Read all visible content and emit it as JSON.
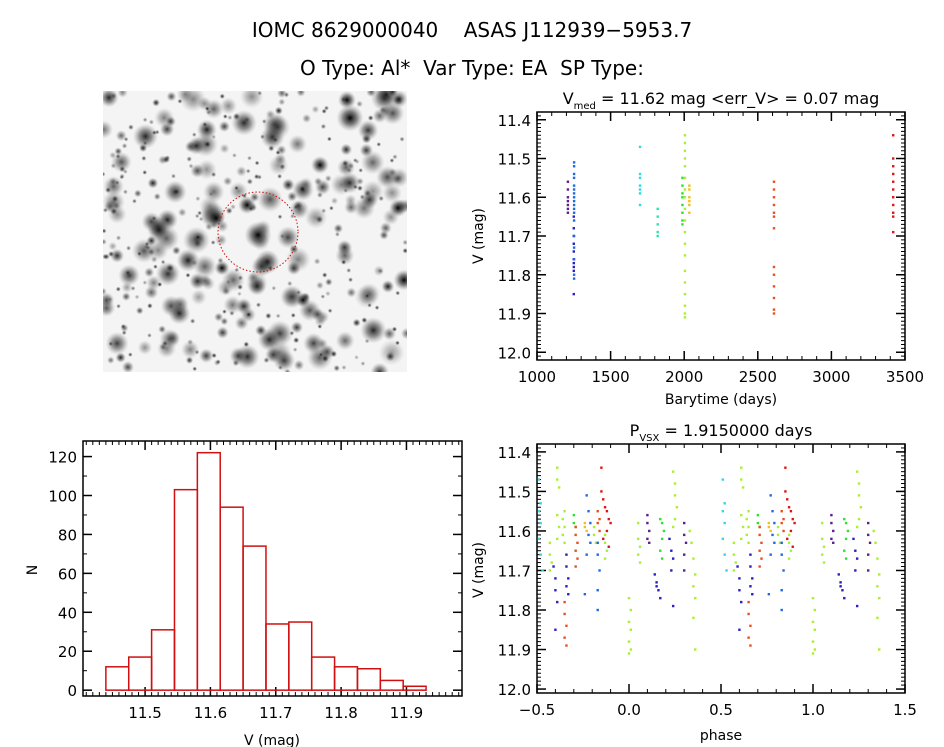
{
  "header": {
    "title": "IOMC 8629000040    ASAS J112939−5953.7",
    "subtitle": "O Type: Al*  Var Type: EA  SP Type:"
  },
  "colors": {
    "purple": "#5a2090",
    "darkblue": "#2a20c0",
    "blue": "#1f6ae0",
    "cyan": "#30d8e8",
    "teal": "#30e0b0",
    "green": "#30e030",
    "ygreen": "#a8f030",
    "yellow": "#f0c020",
    "orange": "#e85020",
    "red": "#d81818",
    "hist": "#d01010",
    "circle": "#cc1010"
  },
  "image_panel": {
    "type": "sky image",
    "marker": "dashed red circle around target"
  },
  "chart_data": [
    {
      "id": "lightcurve",
      "type": "scatter",
      "title_main": "V",
      "title_sub": "med",
      "title_rest": " = 11.62 mag <err_V> = 0.07 mag",
      "xlabel": "Barytime (days)",
      "ylabel": "V (mag)",
      "xlim": [
        1000,
        3500
      ],
      "ylim": [
        12.02,
        11.38
      ],
      "y_inverted": true,
      "xticks": [
        1000,
        1500,
        2000,
        2500,
        3000,
        3500
      ],
      "xtick_labels": [
        "1000",
        "1500",
        "2000",
        "2500",
        "3000",
        "3500"
      ],
      "yticks": [
        11.4,
        11.5,
        11.6,
        11.7,
        11.8,
        11.9,
        12.0
      ],
      "ytick_labels": [
        "11.4",
        "11.5",
        "11.6",
        "11.7",
        "11.8",
        "11.9",
        "12.0"
      ],
      "grid": false,
      "series": [
        {
          "color": "purple",
          "x": 1210,
          "y": [
            11.56,
            11.58,
            11.6,
            11.61,
            11.62,
            11.63,
            11.64
          ]
        },
        {
          "color": "darkblue",
          "x": 1250,
          "y": [
            11.65,
            11.68,
            11.7,
            11.72,
            11.74,
            11.76,
            11.77,
            11.78,
            11.79,
            11.85
          ]
        },
        {
          "color": "blue",
          "x": 1252,
          "y": [
            11.51,
            11.52,
            11.54,
            11.55,
            11.57,
            11.58,
            11.59,
            11.6,
            11.61,
            11.62,
            11.63,
            11.64,
            11.66,
            11.7,
            11.73,
            11.76,
            11.8,
            11.81
          ]
        },
        {
          "color": "cyan",
          "x": 1700,
          "y": [
            11.47,
            11.54,
            11.55,
            11.57,
            11.58,
            11.59,
            11.62
          ]
        },
        {
          "color": "teal",
          "x": 1820,
          "y": [
            11.63,
            11.65,
            11.67,
            11.69,
            11.7
          ]
        },
        {
          "color": "green",
          "x": 1988,
          "y": [
            11.55,
            11.57,
            11.59,
            11.6,
            11.62,
            11.64,
            11.66,
            11.67
          ]
        },
        {
          "color": "ygreen",
          "x": 2005,
          "y": [
            11.44,
            11.46,
            11.48,
            11.5,
            11.52,
            11.55,
            11.58,
            11.6,
            11.63,
            11.66,
            11.69,
            11.72,
            11.75,
            11.79,
            11.82,
            11.85,
            11.88,
            11.9,
            11.91
          ]
        },
        {
          "color": "yellow",
          "x": 2035,
          "y": [
            11.57,
            11.58,
            11.6,
            11.61,
            11.62,
            11.64
          ]
        },
        {
          "color": "orange",
          "x": 2610,
          "y": [
            11.56,
            11.58,
            11.6,
            11.62,
            11.64,
            11.65,
            11.68,
            11.78,
            11.8,
            11.83,
            11.86,
            11.89,
            11.9
          ]
        },
        {
          "color": "red",
          "x": 3420,
          "y": [
            11.44,
            11.5,
            11.52,
            11.54,
            11.56,
            11.58,
            11.6,
            11.62,
            11.64,
            11.65,
            11.69
          ]
        }
      ]
    },
    {
      "id": "histogram",
      "type": "bar",
      "xlabel": "V (mag)",
      "ylabel": "N",
      "xlim": [
        11.405,
        11.985
      ],
      "ylim": [
        -3,
        128
      ],
      "xticks": [
        11.5,
        11.6,
        11.7,
        11.8,
        11.9
      ],
      "xtick_labels": [
        "11.5",
        "11.6",
        "11.7",
        "11.8",
        "11.9"
      ],
      "yticks": [
        0,
        20,
        40,
        60,
        80,
        100,
        120
      ],
      "ytick_labels": [
        "0",
        "20",
        "40",
        "60",
        "80",
        "100",
        "120"
      ],
      "bin_start": 11.44,
      "bin_width": 0.035,
      "values": [
        12,
        17,
        31,
        103,
        122,
        94,
        74,
        34,
        35,
        17,
        12,
        11,
        5,
        2
      ],
      "grid": false
    },
    {
      "id": "phased",
      "type": "scatter",
      "title_main": "P",
      "title_sub": "VSX",
      "title_rest": " = 1.9150000 days",
      "xlabel": "phase",
      "ylabel": "V (mag)",
      "xlim": [
        -0.5,
        1.5
      ],
      "ylim": [
        12.01,
        11.38
      ],
      "y_inverted": true,
      "xticks": [
        -0.5,
        0.0,
        0.5,
        1.0,
        1.5
      ],
      "xtick_labels": [
        "−0.5",
        "0.0",
        "0.5",
        "1.0",
        "1.5"
      ],
      "yticks": [
        11.4,
        11.5,
        11.6,
        11.7,
        11.8,
        11.9,
        12.0
      ],
      "ytick_labels": [
        "11.4",
        "11.5",
        "11.6",
        "11.7",
        "11.8",
        "11.9",
        "12.0"
      ],
      "repeat_period": 1,
      "grid": false,
      "series": [
        {
          "color": "cyan",
          "phase": [
            -0.49,
            -0.48,
            -0.49,
            -0.48,
            -0.49,
            -0.48,
            -0.47
          ],
          "y": [
            11.47,
            11.53,
            11.55,
            11.58,
            11.62,
            11.66,
            11.7
          ]
        },
        {
          "color": "ygreen",
          "phase": [
            -0.43,
            -0.43,
            -0.42,
            -0.43
          ],
          "y": [
            11.63,
            11.66,
            11.68,
            11.7
          ]
        },
        {
          "color": "darkblue",
          "phase": [
            -0.41,
            -0.4,
            -0.4,
            -0.39,
            -0.4
          ],
          "y": [
            11.69,
            11.72,
            11.75,
            11.78,
            11.85
          ]
        },
        {
          "color": "ygreen",
          "phase": [
            -0.39,
            -0.39,
            -0.38,
            -0.39,
            -0.38,
            -0.39
          ],
          "y": [
            11.44,
            11.47,
            11.49,
            11.56,
            11.59,
            11.62
          ]
        },
        {
          "color": "orange",
          "phase": [
            -0.35,
            -0.35,
            -0.34,
            -0.35,
            -0.34
          ],
          "y": [
            11.78,
            11.81,
            11.84,
            11.87,
            11.89
          ]
        },
        {
          "color": "darkblue",
          "phase": [
            -0.34,
            -0.34,
            -0.33,
            -0.34,
            -0.33
          ],
          "y": [
            11.66,
            11.69,
            11.72,
            11.74,
            11.76
          ]
        },
        {
          "color": "ygreen",
          "phase": [
            -0.35,
            -0.36,
            -0.35,
            -0.36,
            -0.35
          ],
          "y": [
            11.55,
            11.57,
            11.59,
            11.61,
            11.63
          ]
        },
        {
          "color": "green",
          "phase": [
            -0.3,
            -0.3,
            -0.29
          ],
          "y": [
            11.56,
            11.58,
            11.59
          ]
        },
        {
          "color": "orange",
          "phase": [
            -0.29,
            -0.29,
            -0.28,
            -0.29,
            -0.28,
            -0.29
          ],
          "y": [
            11.59,
            11.61,
            11.63,
            11.65,
            11.67,
            11.69
          ]
        },
        {
          "color": "yellow",
          "phase": [
            -0.24,
            -0.24,
            -0.23
          ],
          "y": [
            11.58,
            11.59,
            11.6
          ]
        },
        {
          "color": "blue",
          "phase": [
            -0.23,
            -0.22,
            -0.21,
            -0.22,
            -0.21,
            -0.23,
            -0.24
          ],
          "y": [
            11.51,
            11.55,
            11.58,
            11.61,
            11.63,
            11.66,
            11.76
          ]
        },
        {
          "color": "ygreen",
          "phase": [
            -0.19,
            -0.19,
            -0.18
          ],
          "y": [
            11.59,
            11.61,
            11.63
          ]
        },
        {
          "color": "blue",
          "phase": [
            -0.17,
            -0.17,
            -0.16,
            -0.17,
            -0.17
          ],
          "y": [
            11.63,
            11.66,
            11.7,
            11.75,
            11.8
          ]
        },
        {
          "color": "orange",
          "phase": [
            -0.17,
            -0.16,
            -0.17,
            -0.16
          ],
          "y": [
            11.55,
            11.57,
            11.58,
            11.6
          ]
        },
        {
          "color": "red",
          "phase": [
            -0.15,
            -0.15,
            -0.14,
            -0.13,
            -0.12,
            -0.11,
            -0.1,
            -0.12,
            -0.14,
            -0.11
          ],
          "y": [
            11.44,
            11.5,
            11.52,
            11.54,
            11.55,
            11.57,
            11.58,
            11.6,
            11.62,
            11.64
          ]
        },
        {
          "color": "ygreen",
          "phase": [
            -0.13,
            -0.13,
            -0.12,
            -0.13
          ],
          "y": [
            11.61,
            11.63,
            11.65,
            11.67
          ]
        },
        {
          "color": "ygreen",
          "phase": [
            0.0,
            0.01,
            0.0,
            0.01,
            0.0,
            0.01,
            0.0
          ],
          "y": [
            11.77,
            11.8,
            11.83,
            11.85,
            11.88,
            11.9,
            11.91
          ]
        },
        {
          "color": "ygreen",
          "phase": [
            0.05,
            0.05,
            0.06,
            0.05,
            0.06
          ],
          "y": [
            11.58,
            11.62,
            11.64,
            11.66,
            11.68
          ]
        },
        {
          "color": "purple",
          "phase": [
            0.1,
            0.1,
            0.11,
            0.1,
            0.11
          ],
          "y": [
            11.56,
            11.58,
            11.6,
            11.62,
            11.63
          ]
        },
        {
          "color": "darkblue",
          "phase": [
            0.14,
            0.15,
            0.16,
            0.17,
            0.15
          ],
          "y": [
            11.71,
            11.73,
            11.75,
            11.77,
            11.74
          ]
        },
        {
          "color": "green",
          "phase": [
            0.17,
            0.18,
            0.19,
            0.18,
            0.17,
            0.18
          ],
          "y": [
            11.57,
            11.58,
            11.6,
            11.62,
            11.65,
            11.67
          ]
        },
        {
          "color": "darkblue",
          "phase": [
            0.22,
            0.23,
            0.24,
            0.23,
            0.24
          ],
          "y": [
            11.62,
            11.65,
            11.67,
            11.7,
            11.79
          ]
        },
        {
          "color": "ygreen",
          "phase": [
            0.24,
            0.25,
            0.25,
            0.26,
            0.25,
            0.24
          ],
          "y": [
            11.45,
            11.48,
            11.51,
            11.54,
            11.57,
            11.59
          ]
        },
        {
          "color": "purple",
          "phase": [
            0.3,
            0.3,
            0.31,
            0.3,
            0.3
          ],
          "y": [
            11.58,
            11.61,
            11.63,
            11.66,
            11.7
          ]
        },
        {
          "color": "ygreen",
          "phase": [
            0.33,
            0.34,
            0.35,
            0.36,
            0.35,
            0.36,
            0.35,
            0.36
          ],
          "y": [
            11.6,
            11.63,
            11.67,
            11.71,
            11.74,
            11.77,
            11.82,
            11.9
          ]
        }
      ]
    }
  ]
}
